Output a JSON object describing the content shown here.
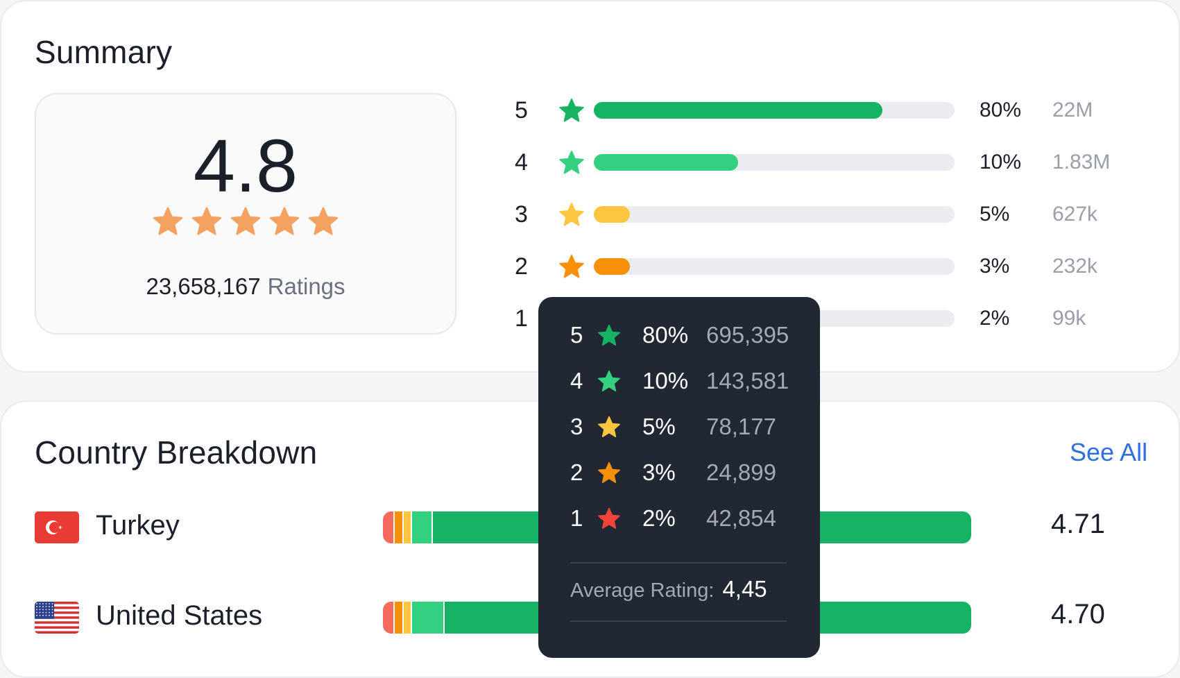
{
  "summary": {
    "title": "Summary",
    "average": "4.8",
    "stars_filled": 5,
    "ratings_count": "23,658,167",
    "ratings_label": "Ratings",
    "distribution": [
      {
        "stars": "5",
        "percent": "80%",
        "count": "22M",
        "fill": 0.8,
        "color": "#16b364"
      },
      {
        "stars": "4",
        "percent": "10%",
        "count": "1.83M",
        "fill": 0.4,
        "color": "#33d17f"
      },
      {
        "stars": "3",
        "percent": "5%",
        "count": "627k",
        "fill": 0.1,
        "color": "#fdc541"
      },
      {
        "stars": "2",
        "percent": "3%",
        "count": "232k",
        "fill": 0.1,
        "color": "#f79009"
      },
      {
        "stars": "1",
        "percent": "2%",
        "count": "99k",
        "fill": 0.05,
        "color": "#f04438"
      }
    ]
  },
  "country_breakdown": {
    "title": "Country Breakdown",
    "see_all": "See All",
    "countries": [
      {
        "name": "Turkey",
        "flag": "turkey-flag",
        "score": "4.71",
        "segments": [
          0.02,
          0.015,
          0.015,
          0.035,
          0.915
        ]
      },
      {
        "name": "United States",
        "flag": "us-flag",
        "score": "4.70",
        "segments": [
          0.02,
          0.015,
          0.015,
          0.055,
          0.895
        ]
      }
    ]
  },
  "tooltip": {
    "rows": [
      {
        "stars": "5",
        "percent": "80%",
        "count": "695,395",
        "color": "#16b364"
      },
      {
        "stars": "4",
        "percent": "10%",
        "count": "143,581",
        "color": "#33d17f"
      },
      {
        "stars": "3",
        "percent": "5%",
        "count": "78,177",
        "color": "#fdc541"
      },
      {
        "stars": "2",
        "percent": "3%",
        "count": "24,899",
        "color": "#f79009"
      },
      {
        "stars": "1",
        "percent": "2%",
        "count": "42,854",
        "color": "#f04438"
      }
    ],
    "average_label": "Average Rating:",
    "average_value": "4,45"
  },
  "colors": {
    "star_avg": "#f4a261",
    "segment_colors": [
      "#f86a5e",
      "#f79009",
      "#fdc541",
      "#33d17f",
      "#16b364"
    ]
  }
}
